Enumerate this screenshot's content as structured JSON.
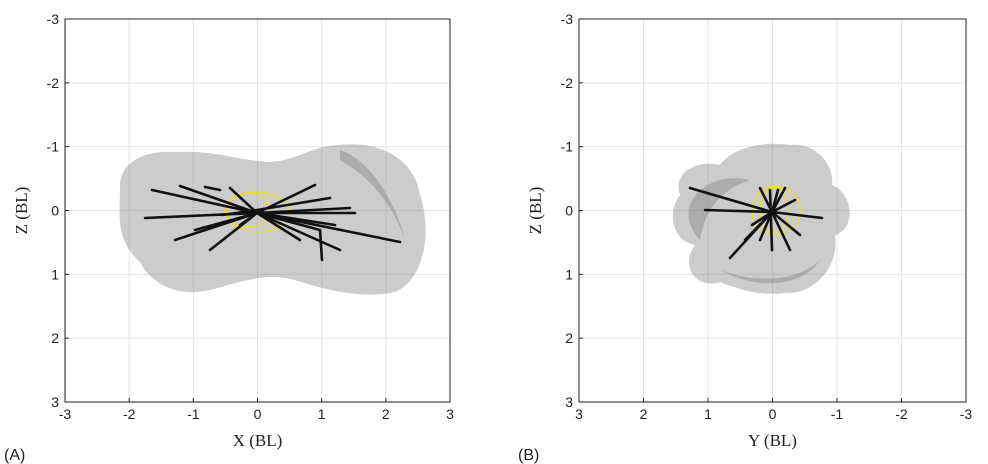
{
  "chart_data": [
    {
      "type": "plot",
      "panel_label": "(A)",
      "xlabel": "X (BL)",
      "ylabel": "Z (BL)",
      "xlim": [
        -3,
        3
      ],
      "xticks": [
        -3,
        -2,
        -1,
        0,
        1,
        2,
        3
      ],
      "ylim": [
        3,
        -3
      ],
      "yticks": [
        -3,
        -2,
        -1,
        0,
        1,
        2,
        3
      ],
      "grid": true
    },
    {
      "type": "plot",
      "panel_label": "(B)",
      "xlabel": "Y (BL)",
      "ylabel": "Z (BL)",
      "xlim": [
        3,
        -3
      ],
      "xticks": [
        3,
        2,
        1,
        0,
        -1,
        -2,
        -3
      ],
      "ylim": [
        3,
        -3
      ],
      "yticks": [
        -3,
        -2,
        -1,
        0,
        1,
        2,
        3
      ],
      "grid": true
    }
  ]
}
